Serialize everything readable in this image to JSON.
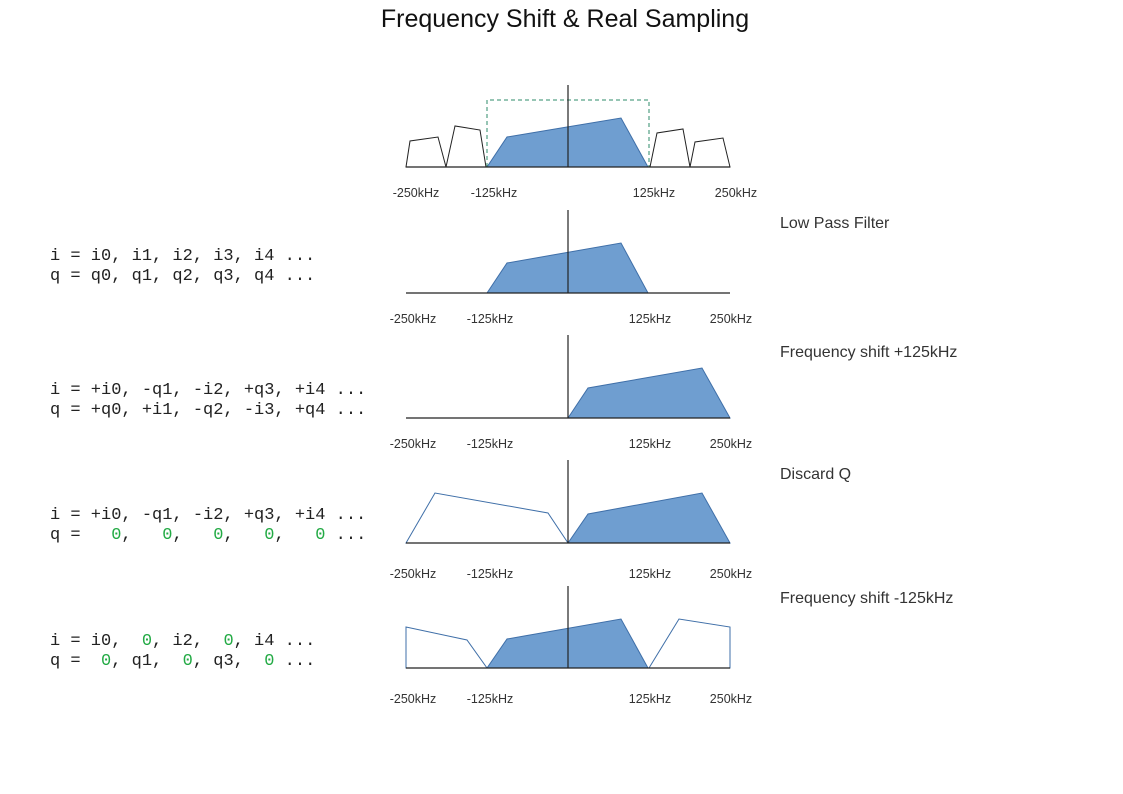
{
  "title": "Frequency Shift & Real Sampling",
  "colors": {
    "fill": "#6f9ed0",
    "stroke": "#3f6fa8",
    "outline": "#222222",
    "zero": "#22aa44",
    "window": "#2e8b6a"
  },
  "panels": [
    {
      "freq_labels": [
        "-250kHz",
        "-125kHz",
        "125kHz",
        "250kHz"
      ],
      "label": "",
      "code": []
    },
    {
      "freq_labels": [
        "-250kHz",
        "-125kHz",
        "125kHz",
        "250kHz"
      ],
      "label": "Low Pass Filter",
      "code": [
        [
          [
            "i = i0, i1, i2, i3, i4 ...",
            false
          ]
        ],
        [
          [
            "q = q0, q1, q2, q3, q4 ...",
            false
          ]
        ]
      ]
    },
    {
      "freq_labels": [
        "-250kHz",
        "-125kHz",
        "125kHz",
        "250kHz"
      ],
      "label": "Frequency shift +125kHz",
      "code": [
        [
          [
            "i = +i0, -q1, -i2, +q3, +i4 ...",
            false
          ]
        ],
        [
          [
            "q = +q0, +i1, -q2, -i3, +q4 ...",
            false
          ]
        ]
      ]
    },
    {
      "freq_labels": [
        "-250kHz",
        "-125kHz",
        "125kHz",
        "250kHz"
      ],
      "label": "Discard Q",
      "code": [
        [
          [
            "i = +i0, -q1, -i2, +q3, +i4 ...",
            false
          ]
        ],
        [
          [
            "q =   ",
            false
          ],
          [
            "0",
            true
          ],
          [
            ",   ",
            false
          ],
          [
            "0",
            true
          ],
          [
            ",   ",
            false
          ],
          [
            "0",
            true
          ],
          [
            ",   ",
            false
          ],
          [
            "0",
            true
          ],
          [
            ",   ",
            false
          ],
          [
            "0",
            true
          ],
          [
            " ...",
            false
          ]
        ]
      ]
    },
    {
      "freq_labels": [
        "-250kHz",
        "-125kHz",
        "125kHz",
        "250kHz"
      ],
      "label": "Frequency shift -125kHz",
      "code": [
        [
          [
            "i = i0,  ",
            false
          ],
          [
            "0",
            true
          ],
          [
            ", i2,  ",
            false
          ],
          [
            "0",
            true
          ],
          [
            ", i4 ...",
            false
          ]
        ],
        [
          [
            "q =  ",
            false
          ],
          [
            "0",
            true
          ],
          [
            ", q1,  ",
            false
          ],
          [
            "0",
            true
          ],
          [
            ", q3,  ",
            false
          ],
          [
            "0",
            true
          ],
          [
            " ...",
            false
          ]
        ]
      ]
    }
  ]
}
